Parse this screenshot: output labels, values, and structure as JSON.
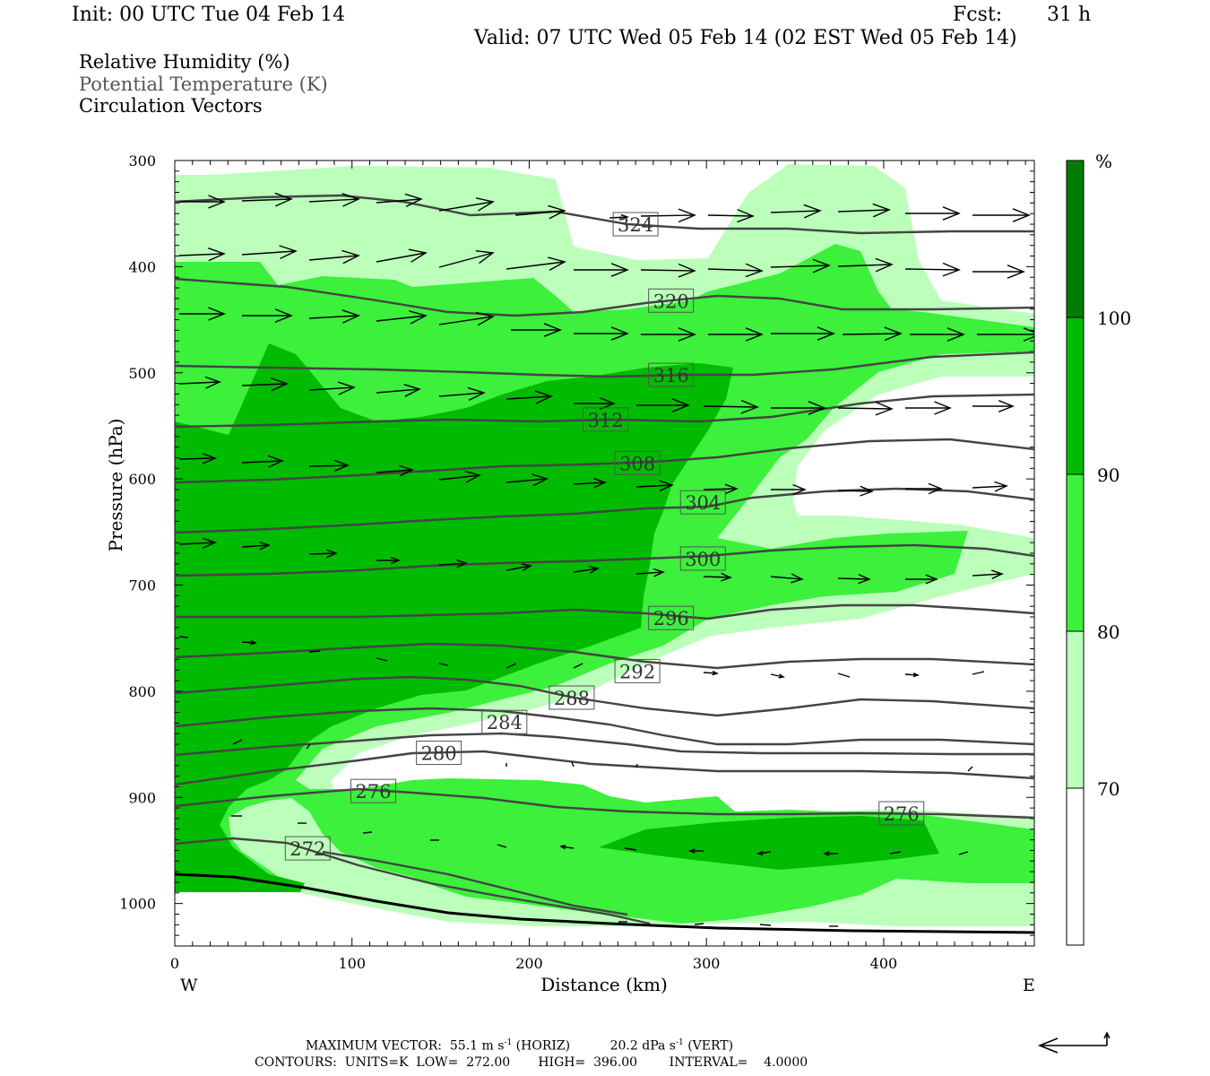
{
  "header": {
    "init": "Init: 00 UTC Tue 04 Feb 14",
    "fcst_label": "Fcst:",
    "fcst_value": "31 h",
    "valid": "Valid: 07 UTC Wed 05 Feb 14 (02 EST Wed 05 Feb 14)"
  },
  "legend": {
    "line1": "Relative Humidity (%)",
    "line2": "Potential Temperature (K)",
    "line3": "Circulation Vectors"
  },
  "footer": {
    "max_vector_label": "MAXIMUM VECTOR:",
    "max_vector_horiz": "55.1 m s",
    "horiz_sup": "-1",
    "horiz_tag": "(HORIZ)",
    "max_vector_vert": "20.2 dPa s",
    "vert_sup": "-1",
    "vert_tag": "(VERT)",
    "contours_line": "CONTOURS:  UNITS=K  LOW=  272.00       HIGH=  396.00        INTERVAL=    4.0000"
  },
  "colors": {
    "rh_70_80": "#bbffbb",
    "rh_80_90": "#3cf03c",
    "rh_90_100": "#00bb00",
    "rh_100": "#007d00",
    "theta_line": "#444444"
  },
  "chart_data": {
    "type": "cross-section",
    "xlabel": "Distance (km)",
    "ylabel": "Pressure (hPa)",
    "xlim": [
      0,
      485
    ],
    "ylim": [
      1040,
      300
    ],
    "x_ticks": [
      0,
      100,
      200,
      300,
      400
    ],
    "y_ticks": [
      300,
      400,
      500,
      600,
      700,
      800,
      900,
      1000
    ],
    "x_end_labels": {
      "left": "W",
      "right": "E"
    },
    "colorbar": {
      "unit": "%",
      "levels": [
        70,
        80,
        90,
        100
      ]
    },
    "theta_labels": [
      {
        "value": "324",
        "x": 260,
        "p": 360
      },
      {
        "value": "320",
        "x": 280,
        "p": 432
      },
      {
        "value": "316",
        "x": 280,
        "p": 502
      },
      {
        "value": "312",
        "x": 243,
        "p": 544
      },
      {
        "value": "308",
        "x": 261,
        "p": 585
      },
      {
        "value": "304",
        "x": 298,
        "p": 622
      },
      {
        "value": "300",
        "x": 298,
        "p": 675
      },
      {
        "value": "296",
        "x": 280,
        "p": 731
      },
      {
        "value": "292",
        "x": 261,
        "p": 781
      },
      {
        "value": "288",
        "x": 224,
        "p": 806
      },
      {
        "value": "284",
        "x": 186,
        "p": 829
      },
      {
        "value": "280",
        "x": 149,
        "p": 858
      },
      {
        "value": "276",
        "x": 112,
        "p": 894
      },
      {
        "value": "276",
        "x": 410,
        "p": 915
      },
      {
        "value": "272",
        "x": 75,
        "p": 948
      }
    ]
  }
}
